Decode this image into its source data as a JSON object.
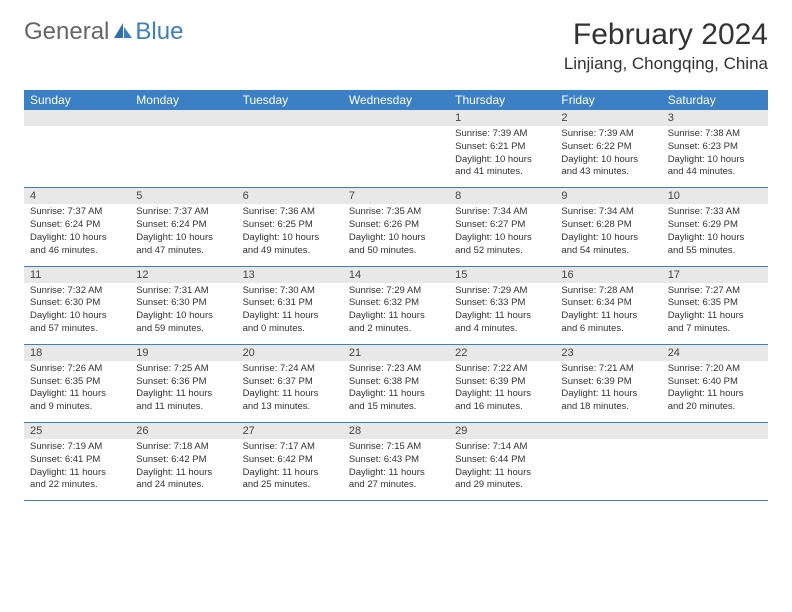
{
  "logo": {
    "general": "General",
    "blue": "Blue"
  },
  "title": "February 2024",
  "location": "Linjiang, Chongqing, China",
  "colors": {
    "header_bg": "#3b7fc4",
    "header_text": "#ffffff",
    "daynum_bg": "#e8e8e8",
    "border": "#3b7fc4",
    "page_bg": "#ffffff",
    "text": "#333333"
  },
  "daysOfWeek": [
    "Sunday",
    "Monday",
    "Tuesday",
    "Wednesday",
    "Thursday",
    "Friday",
    "Saturday"
  ],
  "weeks": [
    [
      null,
      null,
      null,
      null,
      {
        "n": "1",
        "sr": "7:39 AM",
        "ss": "6:21 PM",
        "dl": "10 hours and 41 minutes."
      },
      {
        "n": "2",
        "sr": "7:39 AM",
        "ss": "6:22 PM",
        "dl": "10 hours and 43 minutes."
      },
      {
        "n": "3",
        "sr": "7:38 AM",
        "ss": "6:23 PM",
        "dl": "10 hours and 44 minutes."
      }
    ],
    [
      {
        "n": "4",
        "sr": "7:37 AM",
        "ss": "6:24 PM",
        "dl": "10 hours and 46 minutes."
      },
      {
        "n": "5",
        "sr": "7:37 AM",
        "ss": "6:24 PM",
        "dl": "10 hours and 47 minutes."
      },
      {
        "n": "6",
        "sr": "7:36 AM",
        "ss": "6:25 PM",
        "dl": "10 hours and 49 minutes."
      },
      {
        "n": "7",
        "sr": "7:35 AM",
        "ss": "6:26 PM",
        "dl": "10 hours and 50 minutes."
      },
      {
        "n": "8",
        "sr": "7:34 AM",
        "ss": "6:27 PM",
        "dl": "10 hours and 52 minutes."
      },
      {
        "n": "9",
        "sr": "7:34 AM",
        "ss": "6:28 PM",
        "dl": "10 hours and 54 minutes."
      },
      {
        "n": "10",
        "sr": "7:33 AM",
        "ss": "6:29 PM",
        "dl": "10 hours and 55 minutes."
      }
    ],
    [
      {
        "n": "11",
        "sr": "7:32 AM",
        "ss": "6:30 PM",
        "dl": "10 hours and 57 minutes."
      },
      {
        "n": "12",
        "sr": "7:31 AM",
        "ss": "6:30 PM",
        "dl": "10 hours and 59 minutes."
      },
      {
        "n": "13",
        "sr": "7:30 AM",
        "ss": "6:31 PM",
        "dl": "11 hours and 0 minutes."
      },
      {
        "n": "14",
        "sr": "7:29 AM",
        "ss": "6:32 PM",
        "dl": "11 hours and 2 minutes."
      },
      {
        "n": "15",
        "sr": "7:29 AM",
        "ss": "6:33 PM",
        "dl": "11 hours and 4 minutes."
      },
      {
        "n": "16",
        "sr": "7:28 AM",
        "ss": "6:34 PM",
        "dl": "11 hours and 6 minutes."
      },
      {
        "n": "17",
        "sr": "7:27 AM",
        "ss": "6:35 PM",
        "dl": "11 hours and 7 minutes."
      }
    ],
    [
      {
        "n": "18",
        "sr": "7:26 AM",
        "ss": "6:35 PM",
        "dl": "11 hours and 9 minutes."
      },
      {
        "n": "19",
        "sr": "7:25 AM",
        "ss": "6:36 PM",
        "dl": "11 hours and 11 minutes."
      },
      {
        "n": "20",
        "sr": "7:24 AM",
        "ss": "6:37 PM",
        "dl": "11 hours and 13 minutes."
      },
      {
        "n": "21",
        "sr": "7:23 AM",
        "ss": "6:38 PM",
        "dl": "11 hours and 15 minutes."
      },
      {
        "n": "22",
        "sr": "7:22 AM",
        "ss": "6:39 PM",
        "dl": "11 hours and 16 minutes."
      },
      {
        "n": "23",
        "sr": "7:21 AM",
        "ss": "6:39 PM",
        "dl": "11 hours and 18 minutes."
      },
      {
        "n": "24",
        "sr": "7:20 AM",
        "ss": "6:40 PM",
        "dl": "11 hours and 20 minutes."
      }
    ],
    [
      {
        "n": "25",
        "sr": "7:19 AM",
        "ss": "6:41 PM",
        "dl": "11 hours and 22 minutes."
      },
      {
        "n": "26",
        "sr": "7:18 AM",
        "ss": "6:42 PM",
        "dl": "11 hours and 24 minutes."
      },
      {
        "n": "27",
        "sr": "7:17 AM",
        "ss": "6:42 PM",
        "dl": "11 hours and 25 minutes."
      },
      {
        "n": "28",
        "sr": "7:15 AM",
        "ss": "6:43 PM",
        "dl": "11 hours and 27 minutes."
      },
      {
        "n": "29",
        "sr": "7:14 AM",
        "ss": "6:44 PM",
        "dl": "11 hours and 29 minutes."
      },
      null,
      null
    ]
  ],
  "labels": {
    "sunrise": "Sunrise:",
    "sunset": "Sunset:",
    "daylight": "Daylight:"
  }
}
